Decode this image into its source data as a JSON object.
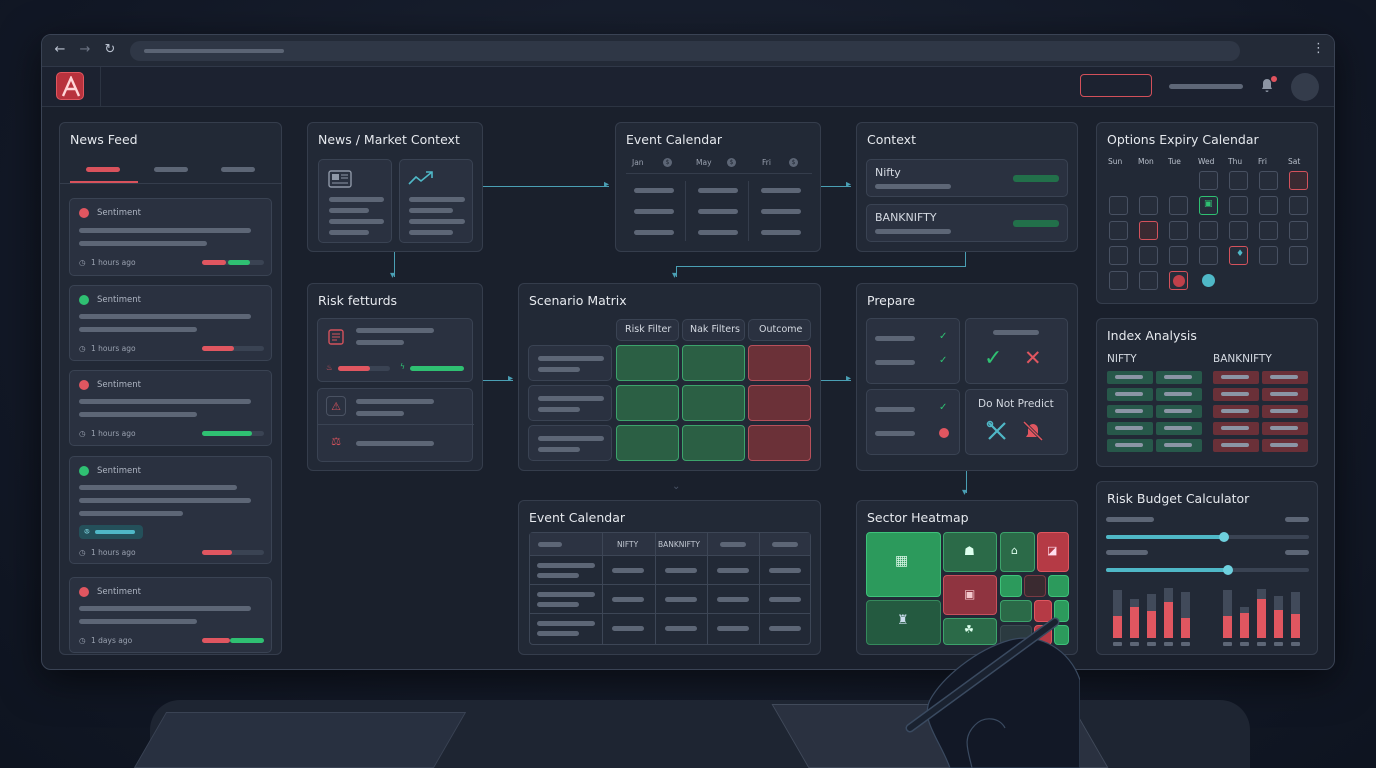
{
  "header": {
    "notification_icon": "bell-icon",
    "logo_icon": "a-logo-icon"
  },
  "news_feed": {
    "title": "News Feed",
    "items": [
      {
        "label": "Sentiment",
        "time": "1 hours ago",
        "color": "#e05660"
      },
      {
        "label": "Sentiment",
        "time": "1 hours ago",
        "color": "#2fc072"
      },
      {
        "label": "Sentiment",
        "time": "1 hours ago",
        "color": "#e05660"
      },
      {
        "label": "Sentiment",
        "time": "1 hours ago",
        "color": "#2fc072"
      },
      {
        "label": "Sentiment",
        "time": "1 days ago",
        "color": "#e05660"
      }
    ]
  },
  "market_context": {
    "title": "News / Market Context"
  },
  "risk_features": {
    "title": "Risk fetturds"
  },
  "event_calendar_top": {
    "title": "Event Calendar",
    "months": [
      "Jan",
      "May",
      "Fri"
    ]
  },
  "scenario_matrix": {
    "title": "Scenario Matrix",
    "headers": [
      "Risk Filter",
      "Nak Filters",
      "Outcome"
    ]
  },
  "context": {
    "title": "Context",
    "items": [
      "Nifty",
      "BANKNIFTY"
    ]
  },
  "prepare": {
    "title": "Prepare",
    "do_not_predict": "Do Not Predict"
  },
  "event_calendar_bottom": {
    "title": "Event Calendar",
    "headers": [
      "NIFTY",
      "BANKNIFTY"
    ]
  },
  "sector_heatmap": {
    "title": "Sector Heatmap"
  },
  "options_expiry": {
    "title": "Options Expiry Calendar",
    "days": [
      "Sun",
      "Mon",
      "Tue",
      "Wed",
      "Thu",
      "Fri",
      "Sat"
    ]
  },
  "index_analysis": {
    "title": "Index Analysis",
    "left": "NIFTY",
    "right": "BANKNIFTY"
  },
  "risk_budget": {
    "title": "Risk Budget Calculator",
    "slider1": 0.58,
    "slider2": 0.6,
    "chart_left": [
      {
        "gray": 0.85,
        "red": 0.4
      },
      {
        "gray": 0.7,
        "red": 0.55
      },
      {
        "gray": 0.78,
        "red": 0.48
      },
      {
        "gray": 0.9,
        "red": 0.65
      },
      {
        "gray": 0.82,
        "red": 0.35
      }
    ],
    "chart_right": [
      {
        "gray": 0.85,
        "red": 0.4
      },
      {
        "gray": 0.55,
        "red": 0.45
      },
      {
        "gray": 0.88,
        "red": 0.7
      },
      {
        "gray": 0.75,
        "red": 0.5
      },
      {
        "gray": 0.82,
        "red": 0.42
      }
    ]
  }
}
